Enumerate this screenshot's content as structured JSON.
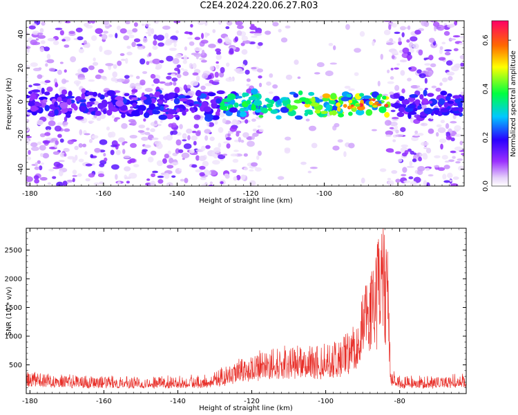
{
  "title": "C2E4.2024.220.06.27.R03",
  "chart_data": [
    {
      "type": "heatmap",
      "xlabel": "Height of straight line (km)",
      "ylabel": "Frequency (Hz)",
      "xlim": [
        -181,
        -62
      ],
      "ylim": [
        -50,
        48
      ],
      "xticks": [
        -180,
        -160,
        -140,
        -120,
        -100,
        -80
      ],
      "yticks": [
        -40,
        -20,
        0,
        20,
        40
      ],
      "grid": false,
      "colorbar": {
        "label": "Normalized spectral amplitude",
        "range": [
          0,
          0.68
        ],
        "ticks": [
          "0.0",
          "0.2",
          "0.4",
          "0.6"
        ],
        "colormap": "white-violet-blue-cyan-green-yellow-red-magenta"
      },
      "data_gap": [
        -117,
        -83
      ],
      "signal_band": {
        "frequency_center": 0,
        "frequency_halfwidth": 8,
        "peak_height": -88,
        "peak_amplitude": 0.66
      },
      "colors": {
        "low": "#e6d2fa",
        "mid": "#7a00e6",
        "high": "#ff0066"
      }
    },
    {
      "type": "line",
      "xlabel": "Height of straight line (km)",
      "ylabel": "SNR (10 * v/v)",
      "xlim": [
        -181,
        -62
      ],
      "ylim": [
        0,
        2880
      ],
      "xticks": [
        -180,
        -160,
        -140,
        -120,
        -100,
        -80
      ],
      "yticks": [
        500,
        1000,
        1500,
        2000,
        2500
      ],
      "grid": false,
      "color": "#e8302a",
      "envelope": [
        {
          "x": -181,
          "y": 380
        },
        {
          "x": -170,
          "y": 330
        },
        {
          "x": -160,
          "y": 300
        },
        {
          "x": -150,
          "y": 300
        },
        {
          "x": -140,
          "y": 310
        },
        {
          "x": -132,
          "y": 340
        },
        {
          "x": -126,
          "y": 480
        },
        {
          "x": -120,
          "y": 700
        },
        {
          "x": -115,
          "y": 760
        },
        {
          "x": -110,
          "y": 820
        },
        {
          "x": -105,
          "y": 880
        },
        {
          "x": -100,
          "y": 880
        },
        {
          "x": -95,
          "y": 980
        },
        {
          "x": -92,
          "y": 1350
        },
        {
          "x": -90,
          "y": 1950
        },
        {
          "x": -88,
          "y": 2100
        },
        {
          "x": -86,
          "y": 2800
        },
        {
          "x": -84.5,
          "y": 2850
        },
        {
          "x": -83.2,
          "y": 2700
        },
        {
          "x": -82.4,
          "y": 450
        },
        {
          "x": -80,
          "y": 300
        },
        {
          "x": -70,
          "y": 300
        },
        {
          "x": -62,
          "y": 340
        }
      ]
    }
  ]
}
